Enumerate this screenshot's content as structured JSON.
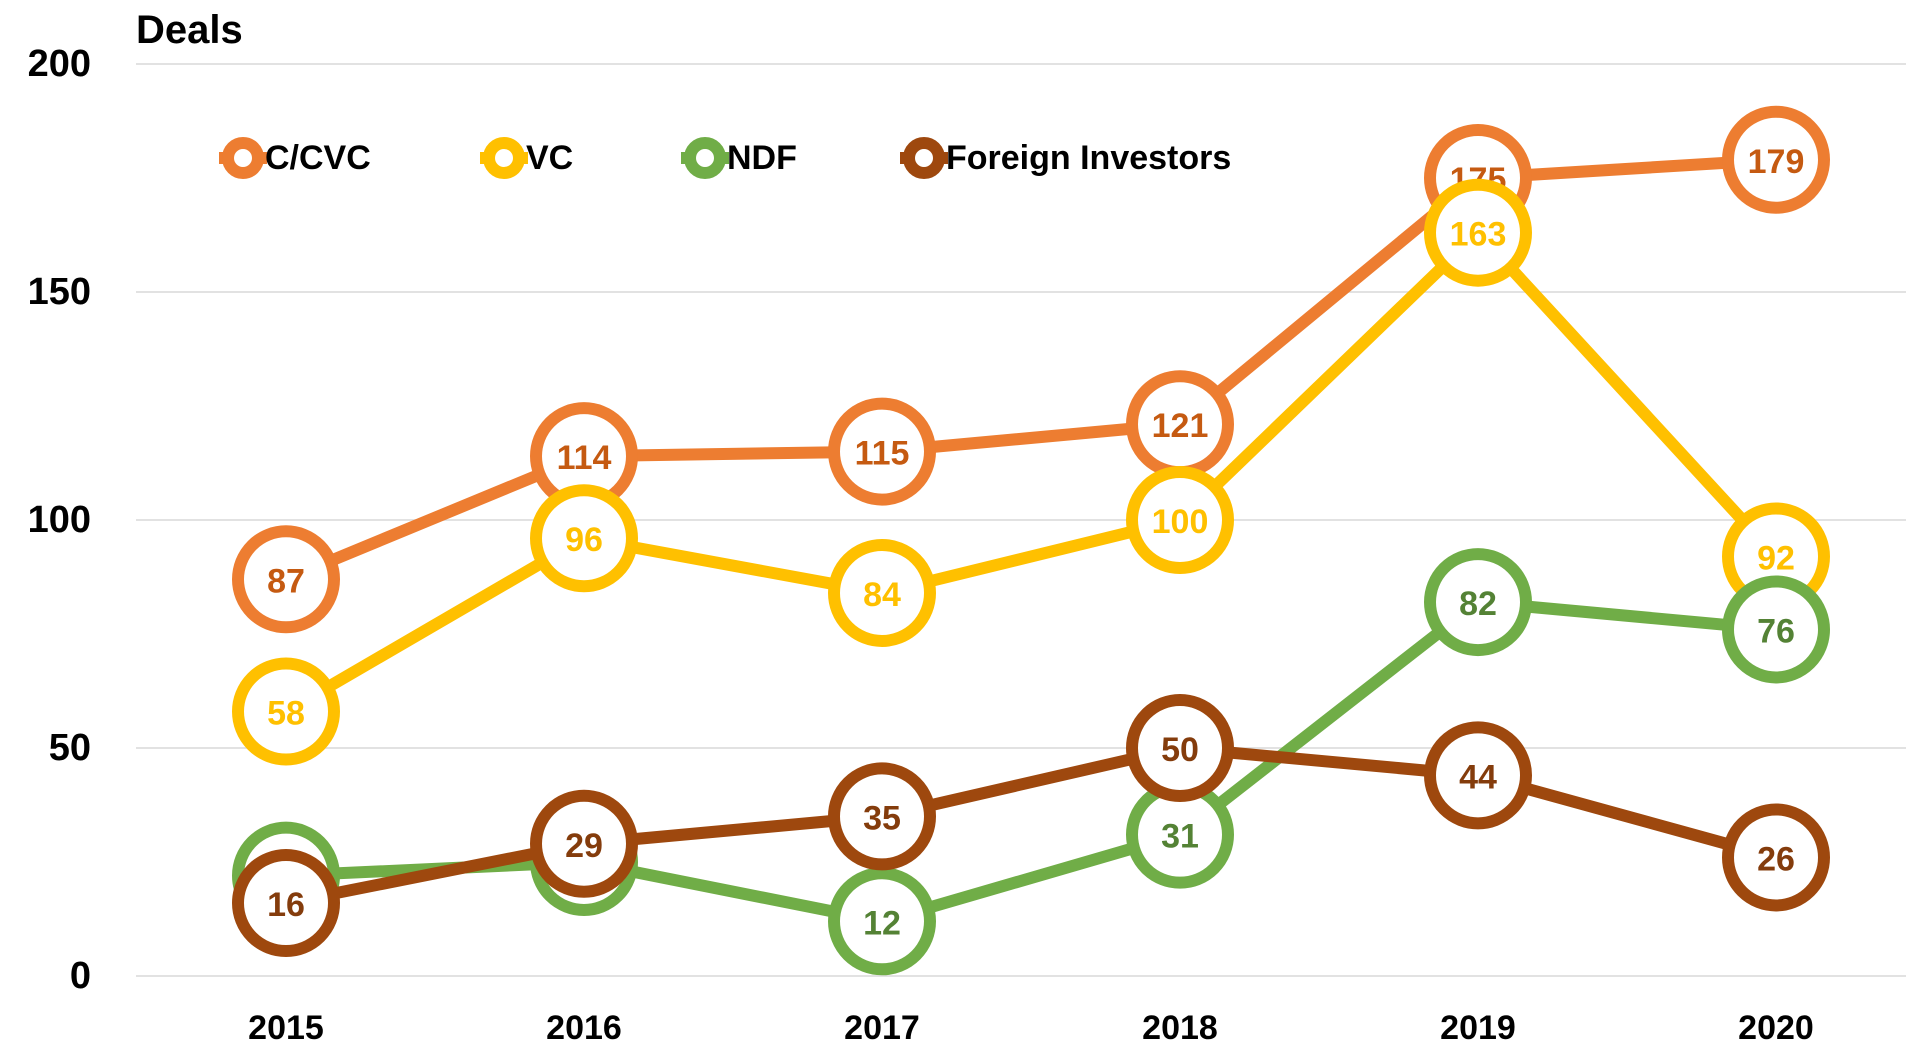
{
  "chart_data": {
    "type": "line",
    "title": "Deals",
    "categories": [
      "2015",
      "2016",
      "2017",
      "2018",
      "2019",
      "2020"
    ],
    "series": [
      {
        "name": "C/CVC",
        "color": "#ed7d31",
        "label_color": "#c55a11",
        "values": [
          87,
          114,
          115,
          121,
          175,
          179
        ]
      },
      {
        "name": "VC",
        "color": "#ffc000",
        "label_color": "#ffc000",
        "values": [
          58,
          96,
          84,
          100,
          163,
          92
        ]
      },
      {
        "name": "NDF",
        "color": "#70ad47",
        "label_color": "#548235",
        "values": [
          22,
          25,
          12,
          31,
          82,
          76
        ]
      },
      {
        "name": "Foreign Investors",
        "color": "#9e480e",
        "label_color": "#843c0c",
        "values": [
          16,
          29,
          35,
          50,
          44,
          26
        ]
      }
    ],
    "ylim": [
      0,
      200
    ],
    "yticks": [
      0,
      50,
      100,
      150,
      200
    ],
    "grid": true,
    "legend": "top"
  }
}
